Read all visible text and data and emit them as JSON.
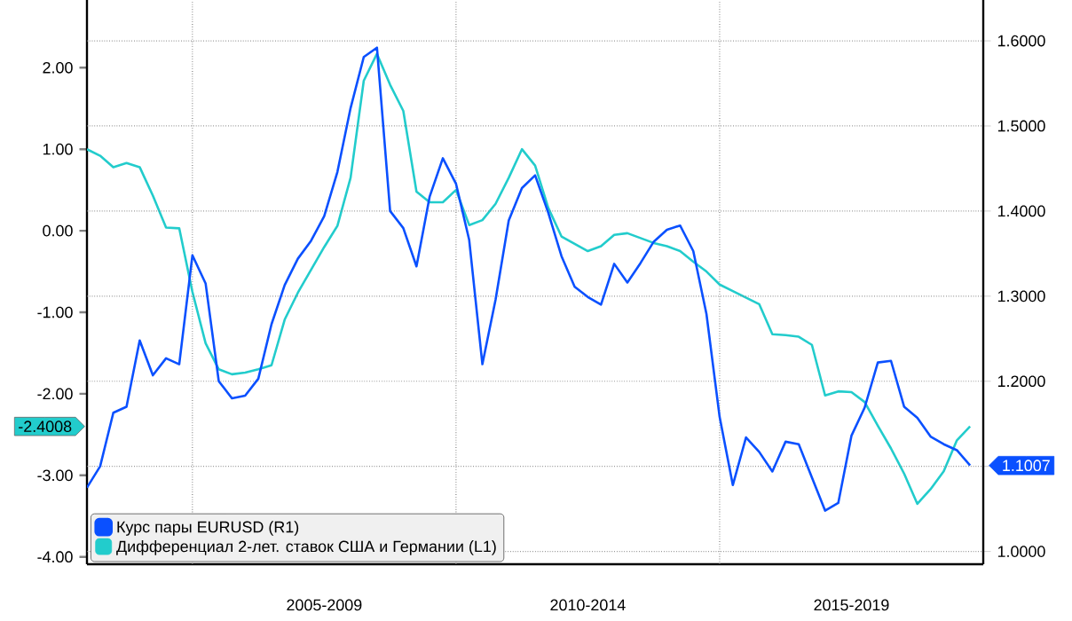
{
  "chart_data": {
    "type": "line",
    "ylim": [
      -4.09,
      2.83
    ],
    "y2lim": [
      0.985,
      1.648
    ],
    "categories": [
      null,
      null,
      null,
      null,
      null,
      null,
      null,
      null,
      null,
      null,
      null,
      null,
      null,
      null,
      null,
      null,
      null,
      null,
      "2005-2009",
      null,
      null,
      null,
      null,
      null,
      null,
      null,
      null,
      null,
      null,
      null,
      null,
      null,
      null,
      null,
      null,
      null,
      null,
      null,
      "2010-2014",
      null,
      null,
      null,
      null,
      null,
      null,
      null,
      null,
      null,
      null,
      null,
      null,
      null,
      null,
      null,
      null,
      null,
      null,
      null,
      "2015-2019",
      null,
      null,
      null,
      null,
      null,
      null,
      null,
      null,
      null
    ],
    "yticks": [
      {
        "value": -4,
        "label": "-4.00"
      },
      {
        "value": -3,
        "label": "-3.00"
      },
      {
        "value": -2,
        "label": "-2.00"
      },
      {
        "value": -1,
        "label": "-1.00"
      },
      {
        "value": 0,
        "label": "0.00"
      },
      {
        "value": 1,
        "label": "1.00"
      },
      {
        "value": 2,
        "label": "2.00"
      }
    ],
    "y2ticks": [
      {
        "value": 1.0,
        "label": "1.0000"
      },
      {
        "value": 1.1,
        "label": null
      },
      {
        "value": 1.2,
        "label": "1.2000"
      },
      {
        "value": 1.3,
        "label": "1.3000"
      },
      {
        "value": 1.4,
        "label": "1.4000"
      },
      {
        "value": 1.5,
        "label": "1.5000"
      },
      {
        "value": 1.6,
        "label": "1.6000"
      }
    ],
    "grid": true,
    "legend": "bottom left",
    "line_style": "solid",
    "annotations": [
      "1.1007",
      "-2.4008"
    ],
    "series": [
      {
        "name": "Курс пары EURUSD (R1)",
        "color": "#0a50ff",
        "axis": "y2",
        "values": [
          1.075,
          1.1,
          1.163,
          1.17,
          1.248,
          1.207,
          1.227,
          1.22,
          1.348,
          1.315,
          1.2,
          1.18,
          1.183,
          1.203,
          1.267,
          1.313,
          1.344,
          1.365,
          1.394,
          1.446,
          1.521,
          1.581,
          1.592,
          1.4,
          1.38,
          1.335,
          1.417,
          1.462,
          1.432,
          1.366,
          1.22,
          1.296,
          1.389,
          1.427,
          1.442,
          1.398,
          1.347,
          1.311,
          1.299,
          1.29,
          1.338,
          1.316,
          1.339,
          1.364,
          1.378,
          1.383,
          1.353,
          1.279,
          1.158,
          1.078,
          1.134,
          1.117,
          1.094,
          1.129,
          1.126,
          1.087,
          1.048,
          1.057,
          1.136,
          1.169,
          1.222,
          1.224,
          1.17,
          1.157,
          1.135,
          1.126,
          1.119,
          1.101
        ]
      },
      {
        "name": "Дифференциал 2-лет. ставок США и Германии (L1)",
        "color": "#22cccc",
        "values": [
          1.0,
          0.92,
          0.78,
          0.83,
          0.78,
          0.43,
          0.04,
          0.03,
          -0.75,
          -1.38,
          -1.7,
          -1.76,
          -1.74,
          -1.7,
          -1.65,
          -1.09,
          -0.76,
          -0.48,
          -0.2,
          0.06,
          0.65,
          1.84,
          2.17,
          1.79,
          1.47,
          0.48,
          0.35,
          0.35,
          0.5,
          0.07,
          0.13,
          0.33,
          0.65,
          1.0,
          0.8,
          0.28,
          -0.07,
          -0.16,
          -0.25,
          -0.19,
          -0.05,
          -0.03,
          -0.09,
          -0.15,
          -0.19,
          -0.25,
          -0.38,
          -0.5,
          -0.66,
          -0.74,
          -0.82,
          -0.9,
          -1.27,
          -1.28,
          -1.3,
          -1.4,
          -2.02,
          -1.97,
          -1.98,
          -2.1,
          -2.39,
          -2.67,
          -2.98,
          -3.35,
          -3.17,
          -2.95,
          -2.57,
          -2.4
        ]
      }
    ]
  }
}
